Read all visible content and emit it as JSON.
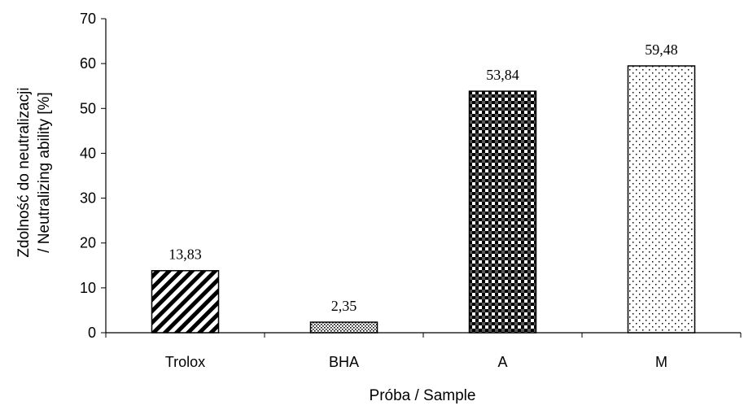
{
  "chart_data": {
    "type": "bar",
    "categories": [
      "Trolox",
      "BHA",
      "A",
      "M"
    ],
    "values": [
      13.83,
      2.35,
      53.84,
      59.48
    ],
    "data_labels": [
      "13,83",
      "2,35",
      "53,84",
      "59,48"
    ],
    "xlabel": "Próba / Sample",
    "ylabel_line1": "Zdolność do neutralizacji",
    "ylabel_line2": "/ Neutralizing ability  [%]",
    "ylim": [
      0,
      70
    ],
    "yticks": [
      0,
      10,
      20,
      30,
      40,
      50,
      60,
      70
    ],
    "grid": false,
    "legend": "none",
    "bar_patterns": [
      "diagonal-stripes",
      "fine-dots",
      "dense-checker",
      "sparse-dots"
    ]
  }
}
